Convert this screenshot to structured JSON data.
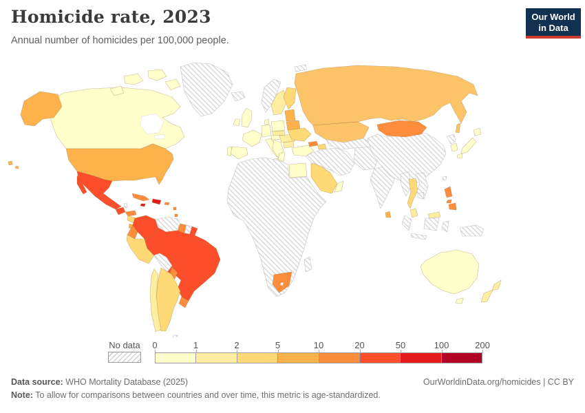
{
  "header": {
    "title": "Homicide rate, 2023",
    "subtitle": "Annual number of homicides per 100,000 people.",
    "logo_line1": "Our World",
    "logo_line2": "in Data",
    "logo_bg": "#12304f",
    "logo_accent": "#cf3a30"
  },
  "legend": {
    "no_data_label": "No data",
    "ticks": [
      "0",
      "1",
      "2",
      "5",
      "10",
      "20",
      "50",
      "100",
      "200"
    ],
    "colors": [
      "#ffffcc",
      "#ffeda0",
      "#fed976",
      "#feb24c",
      "#fd8d3c",
      "#fc4e2a",
      "#e31a1c",
      "#b10026"
    ]
  },
  "footer": {
    "source_label": "Data source:",
    "source_text": " WHO Mortality Database (2025)",
    "note_label": "Note:",
    "note_text": " To allow for comparisons between countries and over time, this metric is age-standardized.",
    "link_text": "OurWorldinData.org/homicides | CC BY"
  },
  "chart_data": {
    "type": "choropleth_map",
    "title": "Homicide rate, 2023",
    "unit": "annual homicides per 100,000 people (age-standardized)",
    "projection": "world",
    "bin_edges": [
      0,
      1,
      2,
      5,
      10,
      20,
      50,
      100,
      200
    ],
    "bin_colors": [
      "#ffffcc",
      "#ffeda0",
      "#fed976",
      "#feb24c",
      "#fd8d3c",
      "#fc4e2a",
      "#e31a1c",
      "#b10026"
    ],
    "no_data_style": "white with gray diagonal hatching",
    "countries": [
      {
        "id": "greenland",
        "label": "Greenland",
        "color": "no-data"
      },
      {
        "id": "iceland",
        "label": "Iceland",
        "color": "no-data"
      },
      {
        "id": "svalbard",
        "label": "Svalbard",
        "color": "no-data"
      },
      {
        "id": "canada",
        "label": "Canada",
        "color": "#ffffcc"
      },
      {
        "id": "usa",
        "label": "United States",
        "color": "#feb24c"
      },
      {
        "id": "mexico",
        "label": "Mexico",
        "color": "#fc4e2a"
      },
      {
        "id": "guatemala",
        "label": "Guatemala",
        "color": "#fc4e2a"
      },
      {
        "id": "belize",
        "label": "Belize",
        "color": "no-data"
      },
      {
        "id": "honduras",
        "label": "Honduras",
        "color": "#fd8d3c"
      },
      {
        "id": "nicaragua",
        "label": "Nicaragua",
        "color": "#fed976"
      },
      {
        "id": "costa-rica",
        "label": "Costa Rica",
        "color": "#feb24c"
      },
      {
        "id": "panama",
        "label": "Panama",
        "color": "#fd8d3c"
      },
      {
        "id": "cuba",
        "label": "Cuba",
        "color": "#fd8d3c"
      },
      {
        "id": "jamaica",
        "label": "Jamaica",
        "color": "#e31a1c"
      },
      {
        "id": "hispaniola",
        "label": "Haiti / Dominican Republic",
        "color": "#e31a1c"
      },
      {
        "id": "puerto-rico",
        "label": "Puerto Rico",
        "color": "#fd8d3c"
      },
      {
        "id": "lesser-antilles",
        "label": "Lesser Antilles",
        "color": "#fd8d3c"
      },
      {
        "id": "colombia",
        "label": "Colombia",
        "color": "#fc4e2a"
      },
      {
        "id": "venezuela",
        "label": "Venezuela",
        "color": "no-data"
      },
      {
        "id": "guyana",
        "label": "Guyana",
        "color": "#fd8d3c"
      },
      {
        "id": "suriname",
        "label": "Suriname",
        "color": "no-data"
      },
      {
        "id": "french-guiana",
        "label": "French Guiana",
        "color": "#fc4e2a"
      },
      {
        "id": "ecuador",
        "label": "Ecuador",
        "color": "#fd8d3c"
      },
      {
        "id": "peru",
        "label": "Peru",
        "color": "#fed976"
      },
      {
        "id": "brazil",
        "label": "Brazil",
        "color": "#fc4e2a"
      },
      {
        "id": "bolivia",
        "label": "Bolivia",
        "color": "no-data"
      },
      {
        "id": "paraguay",
        "label": "Paraguay",
        "color": "#fd8d3c"
      },
      {
        "id": "uruguay",
        "label": "Uruguay",
        "color": "#fd8d3c"
      },
      {
        "id": "argentina",
        "label": "Argentina",
        "color": "#fed976"
      },
      {
        "id": "chile",
        "label": "Chile",
        "color": "#ffeda0"
      },
      {
        "id": "falklands",
        "label": "Falkland Islands",
        "color": "no-data"
      },
      {
        "id": "uk",
        "label": "United Kingdom",
        "color": "#ffffcc"
      },
      {
        "id": "ireland",
        "label": "Ireland",
        "color": "#ffffcc"
      },
      {
        "id": "norway",
        "label": "Norway",
        "color": "no-data"
      },
      {
        "id": "sweden",
        "label": "Sweden",
        "color": "#ffeda0"
      },
      {
        "id": "finland",
        "label": "Finland",
        "color": "#fed976"
      },
      {
        "id": "denmark",
        "label": "Denmark",
        "color": "#ffffcc"
      },
      {
        "id": "germany",
        "label": "Germany",
        "color": "#ffffcc"
      },
      {
        "id": "france",
        "label": "France",
        "color": "#ffffcc"
      },
      {
        "id": "spain",
        "label": "Spain",
        "color": "#ffffcc"
      },
      {
        "id": "portugal",
        "label": "Portugal",
        "color": "#ffffcc"
      },
      {
        "id": "italy",
        "label": "Italy",
        "color": "#ffffcc"
      },
      {
        "id": "austria",
        "label": "Austria / Switzerland",
        "color": "#ffffcc"
      },
      {
        "id": "poland",
        "label": "Poland",
        "color": "#ffffcc"
      },
      {
        "id": "czechia-slovakia",
        "label": "Czechia / Slovakia",
        "color": "#ffeda0"
      },
      {
        "id": "hungary-romania",
        "label": "Hungary / Romania",
        "color": "#ffeda0"
      },
      {
        "id": "balkans",
        "label": "Western Balkans",
        "color": "#ffffcc"
      },
      {
        "id": "bulgaria",
        "label": "Bulgaria",
        "color": "#ffeda0"
      },
      {
        "id": "greece",
        "label": "Greece",
        "color": "#ffffcc"
      },
      {
        "id": "baltics",
        "label": "Baltic states",
        "color": "#feb24c"
      },
      {
        "id": "belarus",
        "label": "Belarus",
        "color": "#feb24c"
      },
      {
        "id": "ukraine",
        "label": "Ukraine",
        "color": "#fed976"
      },
      {
        "id": "russia",
        "label": "Russia",
        "color": "#fdc368"
      },
      {
        "id": "kazakhstan",
        "label": "Kazakhstan",
        "color": "#fdc368"
      },
      {
        "id": "georgia",
        "label": "Georgia",
        "color": "#fd8d3c"
      },
      {
        "id": "azerbaijan-armenia",
        "label": "Armenia / Azerbaijan",
        "color": "#fed976"
      },
      {
        "id": "turkey",
        "label": "Turkey",
        "color": "#ffffcc"
      },
      {
        "id": "middle-east",
        "label": "Middle East (Syria, Iraq, Iran...)",
        "color": "no-data"
      },
      {
        "id": "central-asia",
        "label": "Central Asia",
        "color": "no-data"
      },
      {
        "id": "afghanistan-pakistan",
        "label": "Afghanistan / Pakistan",
        "color": "no-data"
      },
      {
        "id": "saudi-arabia",
        "label": "Saudi Arabia / Yemen",
        "color": "#fed976"
      },
      {
        "id": "oman",
        "label": "Oman / UAE",
        "color": "#ffffcc"
      },
      {
        "id": "egypt",
        "label": "Egypt",
        "color": "#ffffcc"
      },
      {
        "id": "africa",
        "label": "Africa (most countries)",
        "color": "no-data"
      },
      {
        "id": "south-africa",
        "label": "South Africa",
        "color": "#fd8d3c"
      },
      {
        "id": "lesotho",
        "label": "Lesotho",
        "color": "no-data"
      },
      {
        "id": "madagascar",
        "label": "Madagascar",
        "color": "no-data"
      },
      {
        "id": "india",
        "label": "India",
        "color": "no-data"
      },
      {
        "id": "sri-lanka",
        "label": "Sri Lanka",
        "color": "#feb24c"
      },
      {
        "id": "china",
        "label": "China",
        "color": "no-data"
      },
      {
        "id": "mongolia",
        "label": "Mongolia",
        "color": "#fd8d3c"
      },
      {
        "id": "north-korea",
        "label": "North Korea",
        "color": "no-data"
      },
      {
        "id": "south-korea",
        "label": "South Korea",
        "color": "#ffffcc"
      },
      {
        "id": "japan",
        "label": "Japan",
        "color": "#ffffcc"
      },
      {
        "id": "taiwan",
        "label": "Taiwan",
        "color": "no-data"
      },
      {
        "id": "myanmar",
        "label": "Myanmar",
        "color": "no-data"
      },
      {
        "id": "thailand",
        "label": "Thailand",
        "color": "#fed976"
      },
      {
        "id": "laos-vietnam",
        "label": "Laos / Vietnam",
        "color": "no-data"
      },
      {
        "id": "cambodia",
        "label": "Cambodia",
        "color": "no-data"
      },
      {
        "id": "malaysia",
        "label": "Malaysia",
        "color": "#ffeda0"
      },
      {
        "id": "indonesia",
        "label": "Indonesia",
        "color": "no-data"
      },
      {
        "id": "new-guinea",
        "label": "Papua New Guinea",
        "color": "no-data"
      },
      {
        "id": "philippines",
        "label": "Philippines",
        "color": "#fd8d3c"
      },
      {
        "id": "australia",
        "label": "Australia",
        "color": "#ffffcc"
      },
      {
        "id": "new-zealand",
        "label": "New Zealand",
        "color": "#ffeda0"
      }
    ]
  }
}
